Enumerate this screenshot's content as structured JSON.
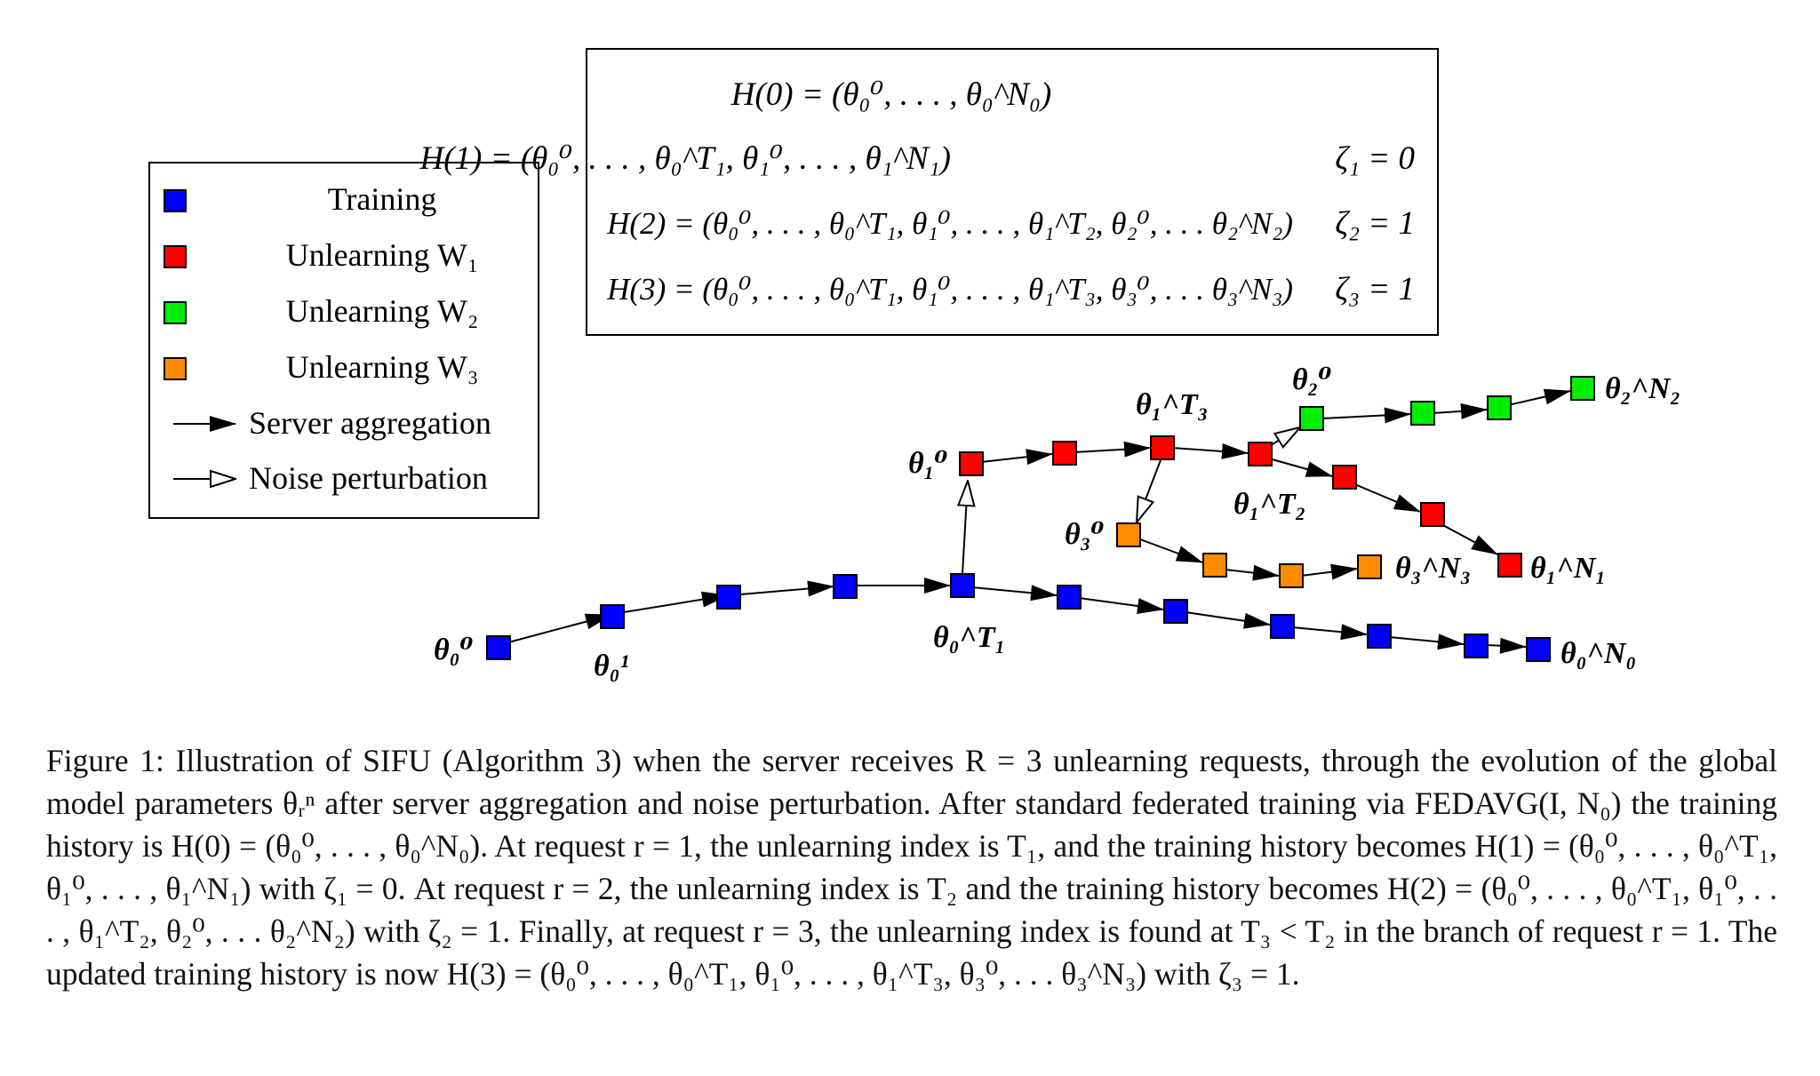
{
  "legend": {
    "items": [
      {
        "label": "Training",
        "color": "#0000ff",
        "kind": "square"
      },
      {
        "label": "Unlearning W₁",
        "color": "#ff0000",
        "kind": "square"
      },
      {
        "label": "Unlearning W₂",
        "color": "#00ee00",
        "kind": "square"
      },
      {
        "label": "Unlearning W₃",
        "color": "#ff8c00",
        "kind": "square"
      },
      {
        "label": "Server aggregation",
        "kind": "filled-arrow"
      },
      {
        "label": "Noise perturbation",
        "kind": "hollow-arrow"
      }
    ]
  },
  "history_box": {
    "rows": [
      {
        "expr": "H(0) = (θ₀⁰, . . . , θ₀^N₀)",
        "zeta": ""
      },
      {
        "expr": "H(1) = (θ₀⁰, . . . , θ₀^T₁, θ₁⁰, . . . , θ₁^N₁)",
        "zeta": "ζ₁ = 0"
      },
      {
        "expr": "H(2) = (θ₀⁰, . . . , θ₀^T₁, θ₁⁰, . . . , θ₁^T₂, θ₂⁰, . . . θ₂^N₂)",
        "zeta": "ζ₂ = 1"
      },
      {
        "expr": "H(3) = (θ₀⁰, . . . , θ₀^T₁, θ₁⁰, . . . , θ₁^T₃, θ₃⁰, . . . θ₃^N₃)",
        "zeta": "ζ₃ = 1"
      }
    ]
  },
  "node_labels": {
    "t00": "θ₀⁰",
    "t01": "θ₀¹",
    "t0T1": "θ₀^T₁",
    "t0N0": "θ₀^N₀",
    "t10": "θ₁⁰",
    "t1T3": "θ₁^T₃",
    "t1T2": "θ₁^T₂",
    "t1N1": "θ₁^N₁",
    "t20": "θ₂⁰",
    "t2N2": "θ₂^N₂",
    "t30": "θ₃⁰",
    "t3N3": "θ₃^N₃"
  },
  "colors": {
    "training": "#0000ff",
    "unlearning_w1": "#ff0000",
    "unlearning_w2": "#00ee00",
    "unlearning_w3": "#ff8c00"
  },
  "caption": {
    "text": "Figure 1: Illustration of SIFU (Algorithm 3) when the server receives R = 3 unlearning requests, through the evolution of the global model parameters θᵣⁿ after server aggregation and noise perturbation. After standard federated training via FEDAVG(I, N₀) the training history is H(0) = (θ₀⁰, . . . , θ₀^N₀). At request r = 1, the unlearning index is T₁, and the training history becomes H(1) = (θ₀⁰, . . . , θ₀^T₁, θ₁⁰, . . . , θ₁^N₁) with ζ₁ = 0. At request r = 2, the unlearning index is T₂ and the training history becomes H(2) = (θ₀⁰, . . . , θ₀^T₁, θ₁⁰, . . . , θ₁^T₂, θ₂⁰, . . . θ₂^N₂) with ζ₂ = 1. Finally, at request r = 3, the unlearning index is found at T₃ < T₂ in the branch of request r = 1. The updated training history is now H(3) = (θ₀⁰, . . . , θ₀^T₁, θ₁⁰, . . . , θ₁^T₃, θ₃⁰, . . . θ₃^N₃) with ζ₃ = 1."
  }
}
